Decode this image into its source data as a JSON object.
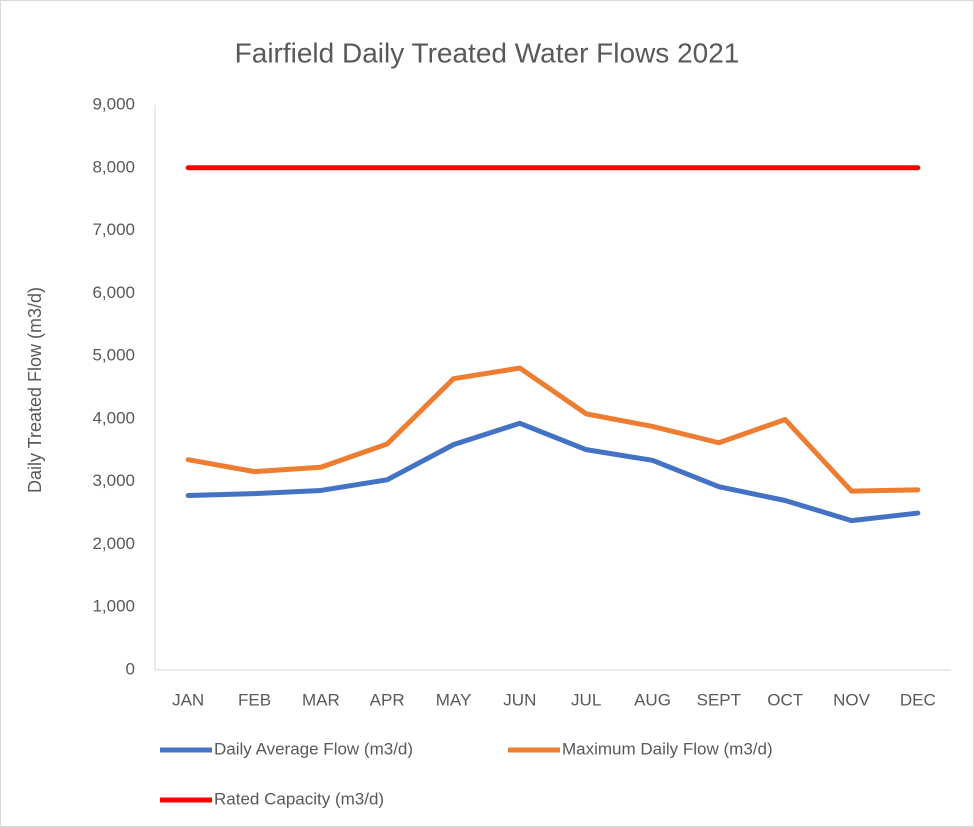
{
  "chart_data": {
    "type": "line",
    "title": "Fairfield Daily Treated Water Flows 2021",
    "y_label": "Daily Treated Flow (m3/d)",
    "categories": [
      "JAN",
      "FEB",
      "MAR",
      "APR",
      "MAY",
      "JUN",
      "JUL",
      "AUG",
      "SEPT",
      "OCT",
      "NOV",
      "DEC"
    ],
    "series": [
      {
        "name": "Daily Average Flow (m3/d)",
        "color": "#4472c4",
        "values": [
          2780,
          2810,
          2860,
          3030,
          3590,
          3930,
          3510,
          3340,
          2920,
          2700,
          2380,
          2500
        ]
      },
      {
        "name": "Maximum Daily Flow (m3/d)",
        "color": "#ed7d31",
        "values": [
          3350,
          3160,
          3230,
          3600,
          4640,
          4810,
          4080,
          3880,
          3620,
          3990,
          2850,
          2870
        ]
      },
      {
        "name": "Rated Capacity (m3/d)",
        "color": "#ff0000",
        "values": [
          8000,
          8000,
          8000,
          8000,
          8000,
          8000,
          8000,
          8000,
          8000,
          8000,
          8000,
          8000
        ]
      }
    ],
    "ylim": [
      0,
      9000
    ],
    "yticks": [
      0,
      {
        "value": 1000,
        "label": "1,000"
      },
      {
        "value": 2000,
        "label": "2,000"
      },
      {
        "value": 3000,
        "label": "3,000"
      },
      {
        "value": 4000,
        "label": "4,000"
      },
      {
        "value": 5000,
        "label": "5,000"
      },
      {
        "value": 6000,
        "label": "6,000"
      },
      {
        "value": 7000,
        "label": "7,000"
      },
      {
        "value": 8000,
        "label": "8,000"
      },
      {
        "value": 9000,
        "label": "9,000"
      }
    ],
    "grid": false,
    "legend": "bottom"
  }
}
